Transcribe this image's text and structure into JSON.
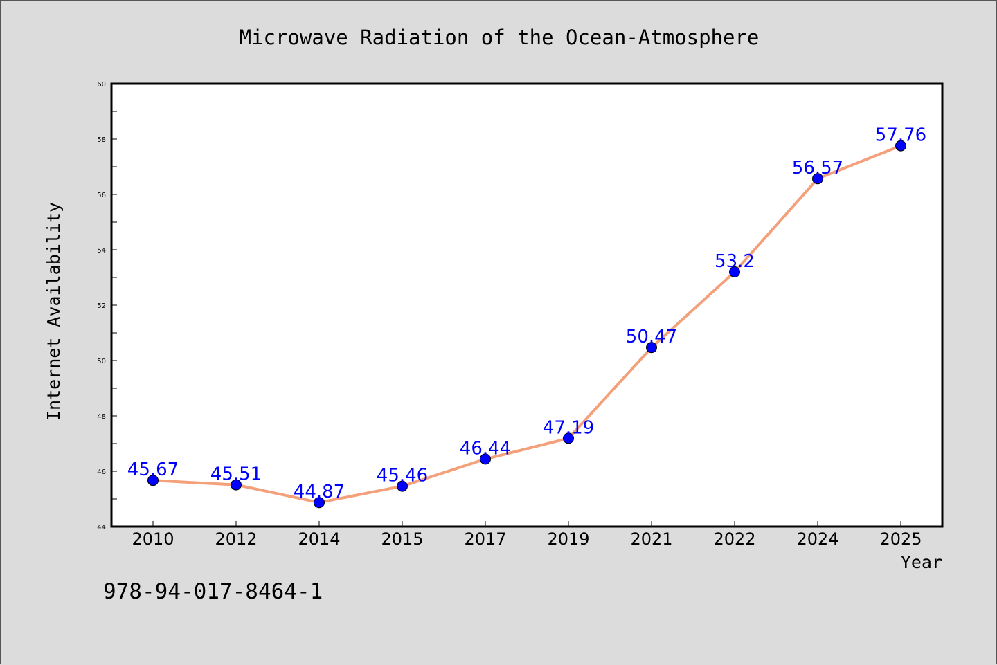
{
  "chart_data": {
    "type": "line",
    "title": "Microwave Radiation of the Ocean-Atmosphere",
    "xlabel": "Year",
    "ylabel": "Internet Availability",
    "categories": [
      "2010",
      "2012",
      "2014",
      "2015",
      "2017",
      "2019",
      "2021",
      "2022",
      "2024",
      "2025"
    ],
    "values": [
      45.67,
      45.51,
      44.87,
      45.46,
      46.44,
      47.19,
      50.47,
      53.2,
      56.57,
      57.76
    ],
    "ylim": [
      44,
      60
    ],
    "yticks": [
      44,
      46,
      48,
      50,
      52,
      54,
      56,
      58,
      60
    ],
    "data_labels": [
      "45.67",
      "45.51",
      "44.87",
      "45.46",
      "46.44",
      "47.19",
      "50.47",
      "53.2",
      "56.57",
      "57.76"
    ],
    "grid": false,
    "line_color": "#f4a07a",
    "marker_color": "#0000ff",
    "label_color": "#0000ff"
  },
  "footer": {
    "isbn": "978-94-017-8464-1"
  }
}
